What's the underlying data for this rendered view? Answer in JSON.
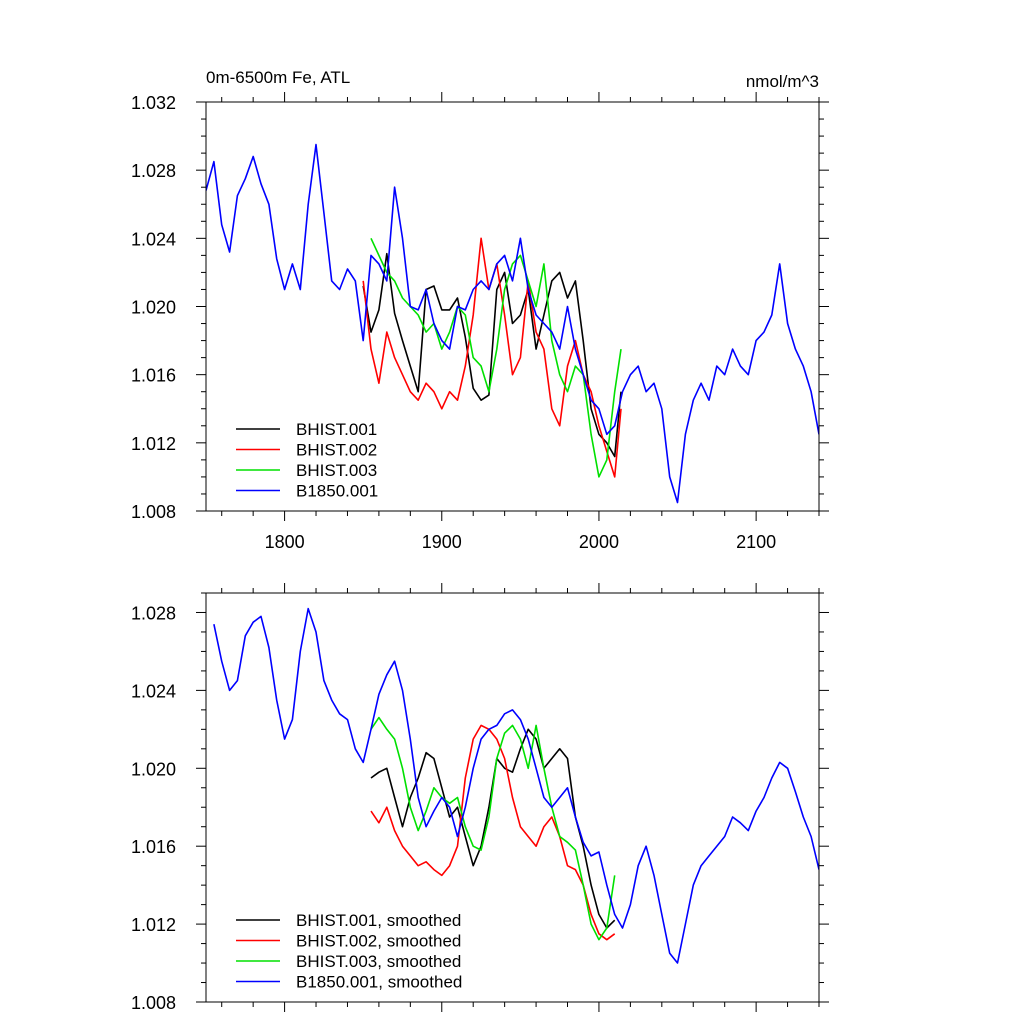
{
  "chart_data": [
    {
      "type": "line",
      "title": "0m-6500m Fe, ATL",
      "units": "nmol/m^3",
      "xlim": [
        1750,
        2140
      ],
      "ylim": [
        1.008,
        1.032
      ],
      "xticks": [
        1800,
        1900,
        2000,
        2100
      ],
      "xtick_labels": [
        "1800",
        "1900",
        "2000",
        "2100"
      ],
      "yticks": [
        1.008,
        1.012,
        1.016,
        1.02,
        1.024,
        1.028,
        1.032
      ],
      "ytick_labels": [
        "1.008",
        "1.012",
        "1.016",
        "1.020",
        "1.024",
        "1.028",
        "1.032"
      ],
      "grid": false,
      "legend_position": "bottom-left",
      "series": [
        {
          "name": "BHIST.001",
          "color": "#000000",
          "x": [
            1850,
            1855,
            1860,
            1865,
            1870,
            1875,
            1880,
            1885,
            1890,
            1895,
            1900,
            1905,
            1910,
            1915,
            1920,
            1925,
            1930,
            1935,
            1940,
            1945,
            1950,
            1955,
            1960,
            1965,
            1970,
            1975,
            1980,
            1985,
            1990,
            1995,
            2000,
            2005,
            2010,
            2014
          ],
          "y": [
            1.0212,
            1.0185,
            1.0198,
            1.0231,
            1.0196,
            1.018,
            1.0165,
            1.015,
            1.021,
            1.0212,
            1.0198,
            1.0198,
            1.0205,
            1.0182,
            1.0152,
            1.0145,
            1.0148,
            1.021,
            1.022,
            1.019,
            1.0195,
            1.021,
            1.0175,
            1.0195,
            1.0215,
            1.022,
            1.0205,
            1.0215,
            1.018,
            1.014,
            1.0125,
            1.012,
            1.0112,
            1.015
          ]
        },
        {
          "name": "BHIST.002",
          "color": "#ff0000",
          "x": [
            1850,
            1855,
            1860,
            1865,
            1870,
            1875,
            1880,
            1885,
            1890,
            1895,
            1900,
            1905,
            1910,
            1915,
            1920,
            1925,
            1930,
            1935,
            1940,
            1945,
            1950,
            1955,
            1960,
            1965,
            1970,
            1975,
            1980,
            1985,
            1990,
            1995,
            2000,
            2005,
            2010,
            2014
          ],
          "y": [
            1.0215,
            1.0175,
            1.0155,
            1.0185,
            1.017,
            1.016,
            1.015,
            1.0145,
            1.0155,
            1.015,
            1.014,
            1.015,
            1.0145,
            1.0165,
            1.0195,
            1.024,
            1.021,
            1.0225,
            1.0195,
            1.016,
            1.017,
            1.0215,
            1.0185,
            1.0175,
            1.014,
            1.013,
            1.0165,
            1.018,
            1.016,
            1.015,
            1.013,
            1.0115,
            1.01,
            1.014
          ]
        },
        {
          "name": "BHIST.003",
          "color": "#00e000",
          "x": [
            1855,
            1860,
            1865,
            1870,
            1875,
            1880,
            1885,
            1890,
            1895,
            1900,
            1905,
            1910,
            1915,
            1920,
            1925,
            1930,
            1935,
            1940,
            1945,
            1950,
            1955,
            1960,
            1965,
            1970,
            1975,
            1980,
            1985,
            1990,
            1995,
            2000,
            2005,
            2010,
            2014
          ],
          "y": [
            1.024,
            1.023,
            1.022,
            1.0215,
            1.0205,
            1.02,
            1.0195,
            1.0185,
            1.019,
            1.0175,
            1.0185,
            1.02,
            1.0195,
            1.017,
            1.0165,
            1.015,
            1.0175,
            1.021,
            1.0225,
            1.023,
            1.0215,
            1.02,
            1.0225,
            1.018,
            1.016,
            1.015,
            1.0165,
            1.016,
            1.0125,
            1.01,
            1.011,
            1.015,
            1.0175
          ]
        },
        {
          "name": "B1850.001",
          "color": "#0000ff",
          "x": [
            1750,
            1755,
            1760,
            1765,
            1770,
            1775,
            1780,
            1785,
            1790,
            1795,
            1800,
            1805,
            1810,
            1815,
            1820,
            1825,
            1830,
            1835,
            1840,
            1845,
            1850,
            1855,
            1860,
            1865,
            1870,
            1875,
            1880,
            1885,
            1890,
            1895,
            1900,
            1905,
            1910,
            1915,
            1920,
            1925,
            1930,
            1935,
            1940,
            1945,
            1950,
            1955,
            1960,
            1965,
            1970,
            1975,
            1980,
            1985,
            1990,
            1995,
            2000,
            2005,
            2010,
            2015,
            2020,
            2025,
            2030,
            2035,
            2040,
            2045,
            2050,
            2055,
            2060,
            2065,
            2070,
            2075,
            2080,
            2085,
            2090,
            2095,
            2100,
            2105,
            2110,
            2115,
            2120,
            2125,
            2130,
            2135,
            2140
          ],
          "y": [
            1.0268,
            1.0285,
            1.0248,
            1.0232,
            1.0265,
            1.0275,
            1.0288,
            1.0272,
            1.026,
            1.0228,
            1.021,
            1.0225,
            1.021,
            1.026,
            1.0295,
            1.0255,
            1.0215,
            1.021,
            1.0222,
            1.0215,
            1.018,
            1.023,
            1.0225,
            1.0215,
            1.027,
            1.024,
            1.02,
            1.0198,
            1.021,
            1.019,
            1.018,
            1.0175,
            1.02,
            1.0198,
            1.021,
            1.0215,
            1.021,
            1.0225,
            1.023,
            1.0215,
            1.024,
            1.021,
            1.0195,
            1.019,
            1.0185,
            1.0175,
            1.02,
            1.0175,
            1.016,
            1.0145,
            1.014,
            1.0125,
            1.013,
            1.015,
            1.016,
            1.0165,
            1.015,
            1.0155,
            1.014,
            1.01,
            1.0085,
            1.0125,
            1.0145,
            1.0155,
            1.0145,
            1.0165,
            1.016,
            1.0175,
            1.0165,
            1.016,
            1.018,
            1.0185,
            1.0195,
            1.0225,
            1.019,
            1.0175,
            1.0165,
            1.015,
            1.0125
          ]
        }
      ]
    },
    {
      "type": "line",
      "xlim": [
        1750,
        2140
      ],
      "ylim": [
        1.008,
        1.029
      ],
      "xticks": [
        1800,
        1900,
        2000,
        2100
      ],
      "yticks": [
        1.008,
        1.012,
        1.016,
        1.02,
        1.024,
        1.028
      ],
      "ytick_labels": [
        "1.008",
        "1.012",
        "1.016",
        "1.020",
        "1.024",
        "1.028"
      ],
      "grid": false,
      "legend_position": "bottom-left",
      "series": [
        {
          "name": "BHIST.001, smoothed",
          "color": "#000000",
          "x": [
            1855,
            1860,
            1865,
            1870,
            1875,
            1880,
            1885,
            1890,
            1895,
            1900,
            1905,
            1910,
            1915,
            1920,
            1925,
            1930,
            1935,
            1940,
            1945,
            1950,
            1955,
            1960,
            1965,
            1970,
            1975,
            1980,
            1985,
            1990,
            1995,
            2000,
            2005,
            2010
          ],
          "y": [
            1.0195,
            1.0198,
            1.02,
            1.0185,
            1.017,
            1.0185,
            1.0195,
            1.0208,
            1.0205,
            1.019,
            1.0175,
            1.018,
            1.0165,
            1.015,
            1.016,
            1.018,
            1.0205,
            1.02,
            1.0198,
            1.021,
            1.022,
            1.0215,
            1.02,
            1.0205,
            1.021,
            1.0205,
            1.0175,
            1.016,
            1.014,
            1.0125,
            1.0118,
            1.0122
          ]
        },
        {
          "name": "BHIST.002, smoothed",
          "color": "#ff0000",
          "x": [
            1855,
            1860,
            1865,
            1870,
            1875,
            1880,
            1885,
            1890,
            1895,
            1900,
            1905,
            1910,
            1915,
            1920,
            1925,
            1930,
            1935,
            1940,
            1945,
            1950,
            1955,
            1960,
            1965,
            1970,
            1975,
            1980,
            1985,
            1990,
            1995,
            2000,
            2005,
            2010
          ],
          "y": [
            1.0178,
            1.0172,
            1.018,
            1.0168,
            1.016,
            1.0155,
            1.015,
            1.0152,
            1.0148,
            1.0145,
            1.015,
            1.016,
            1.0195,
            1.0215,
            1.0222,
            1.022,
            1.0215,
            1.0205,
            1.0185,
            1.017,
            1.0165,
            1.016,
            1.017,
            1.0175,
            1.0165,
            1.015,
            1.0148,
            1.014,
            1.0125,
            1.0115,
            1.0112,
            1.0115
          ]
        },
        {
          "name": "BHIST.003, smoothed",
          "color": "#00e000",
          "x": [
            1855,
            1860,
            1865,
            1870,
            1875,
            1880,
            1885,
            1890,
            1895,
            1900,
            1905,
            1910,
            1915,
            1920,
            1925,
            1930,
            1935,
            1940,
            1945,
            1950,
            1955,
            1960,
            1965,
            1970,
            1975,
            1980,
            1985,
            1990,
            1995,
            2000,
            2005,
            2010
          ],
          "y": [
            1.022,
            1.0226,
            1.022,
            1.0215,
            1.02,
            1.018,
            1.0168,
            1.0178,
            1.019,
            1.0185,
            1.0182,
            1.0185,
            1.017,
            1.016,
            1.0158,
            1.0175,
            1.0205,
            1.0218,
            1.0222,
            1.0215,
            1.02,
            1.0222,
            1.02,
            1.018,
            1.0165,
            1.0162,
            1.0158,
            1.014,
            1.012,
            1.0112,
            1.0118,
            1.0145
          ]
        },
        {
          "name": "B1850.001, smoothed",
          "color": "#0000ff",
          "x": [
            1755,
            1760,
            1765,
            1770,
            1775,
            1780,
            1785,
            1790,
            1795,
            1800,
            1805,
            1810,
            1815,
            1820,
            1825,
            1830,
            1835,
            1840,
            1845,
            1850,
            1855,
            1860,
            1865,
            1870,
            1875,
            1880,
            1885,
            1890,
            1895,
            1900,
            1905,
            1910,
            1915,
            1920,
            1925,
            1930,
            1935,
            1940,
            1945,
            1950,
            1955,
            1960,
            1965,
            1970,
            1975,
            1980,
            1985,
            1990,
            1995,
            2000,
            2005,
            2010,
            2015,
            2020,
            2025,
            2030,
            2035,
            2040,
            2045,
            2050,
            2055,
            2060,
            2065,
            2070,
            2075,
            2080,
            2085,
            2090,
            2095,
            2100,
            2105,
            2110,
            2115,
            2120,
            2125,
            2130,
            2135,
            2140
          ],
          "y": [
            1.0274,
            1.0255,
            1.024,
            1.0245,
            1.0268,
            1.0275,
            1.0278,
            1.0262,
            1.0235,
            1.0215,
            1.0225,
            1.026,
            1.0282,
            1.027,
            1.0245,
            1.0235,
            1.0228,
            1.0225,
            1.021,
            1.0203,
            1.022,
            1.0238,
            1.0248,
            1.0255,
            1.024,
            1.0215,
            1.0185,
            1.017,
            1.0178,
            1.0185,
            1.018,
            1.0165,
            1.018,
            1.02,
            1.0215,
            1.022,
            1.0222,
            1.0228,
            1.023,
            1.0225,
            1.0215,
            1.02,
            1.0185,
            1.018,
            1.0185,
            1.019,
            1.0175,
            1.0162,
            1.0155,
            1.0157,
            1.014,
            1.0125,
            1.0118,
            1.013,
            1.015,
            1.016,
            1.0145,
            1.0125,
            1.0105,
            1.01,
            1.012,
            1.014,
            1.015,
            1.0155,
            1.016,
            1.0165,
            1.0175,
            1.0172,
            1.0168,
            1.0178,
            1.0185,
            1.0195,
            1.0203,
            1.02,
            1.0188,
            1.0175,
            1.0165,
            1.0148
          ]
        }
      ]
    }
  ]
}
